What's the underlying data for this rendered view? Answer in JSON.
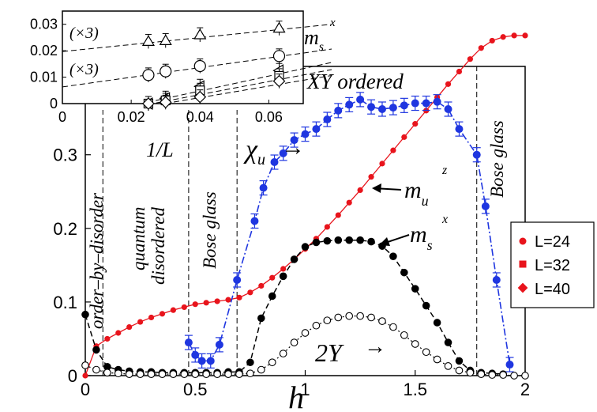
{
  "chart_data": [
    {
      "type": "scatter",
      "xlabel": "h",
      "ylabel": "",
      "xlim": [
        0,
        2
      ],
      "ylim": [
        0,
        0.42
      ],
      "xticks": [
        "0",
        "0.5",
        "1",
        "1.5",
        "2"
      ],
      "yticks": [
        "0",
        "0.1",
        "0.2",
        "0.3"
      ],
      "legend_position": "right",
      "legend": [
        "L=24",
        "L=32",
        "L=40"
      ],
      "phase_boundaries": [
        0.08,
        0.47,
        0.69,
        1.78
      ],
      "region_labels": [
        "order–by–disorder",
        "quantum",
        "disordered",
        "Bose glass",
        "XY ordered",
        "Bose glass"
      ],
      "annotations": {
        "chi_u": "χ",
        "chi_u_sub": "u",
        "m_uz": "m",
        "m_uz_sub": "u",
        "m_uz_sup": "z",
        "m_sx": "m",
        "m_sx_sub": "s",
        "m_sx_sup": "x",
        "upsilon": "2Υ",
        "arrow": "→"
      },
      "colors": {
        "m_uz": "#e8141c",
        "chi_u": "#1f36e0",
        "m_sx": "#000000",
        "upsilon": "#000000"
      },
      "series": [
        {
          "key": "m_uz",
          "x": [
            0.0,
            0.05,
            0.1,
            0.15,
            0.2,
            0.25,
            0.3,
            0.35,
            0.4,
            0.45,
            0.5,
            0.55,
            0.6,
            0.65,
            0.7,
            0.75,
            0.8,
            0.85,
            0.9,
            0.95,
            1.0,
            1.05,
            1.1,
            1.15,
            1.2,
            1.25,
            1.3,
            1.35,
            1.4,
            1.45,
            1.5,
            1.55,
            1.6,
            1.65,
            1.7,
            1.75,
            1.8,
            1.85,
            1.9,
            1.95,
            2.0
          ],
          "y": [
            0.0,
            0.04,
            0.05,
            0.058,
            0.066,
            0.073,
            0.079,
            0.084,
            0.089,
            0.093,
            0.097,
            0.099,
            0.101,
            0.103,
            0.106,
            0.113,
            0.122,
            0.133,
            0.145,
            0.158,
            0.172,
            0.186,
            0.202,
            0.218,
            0.235,
            0.252,
            0.27,
            0.288,
            0.306,
            0.324,
            0.342,
            0.36,
            0.378,
            0.396,
            0.413,
            0.43,
            0.445,
            0.455,
            0.46,
            0.462,
            0.462
          ]
        },
        {
          "key": "chi_u",
          "x": [
            0.47,
            0.5,
            0.53,
            0.57,
            0.61,
            0.69,
            0.77,
            0.81,
            0.86,
            0.9,
            0.95,
            1.0,
            1.05,
            1.1,
            1.15,
            1.2,
            1.25,
            1.3,
            1.35,
            1.4,
            1.45,
            1.5,
            1.55,
            1.6,
            1.65,
            1.7,
            1.78,
            1.82,
            1.87,
            1.93
          ],
          "y": [
            0.045,
            0.028,
            0.02,
            0.02,
            0.042,
            0.13,
            0.21,
            0.255,
            0.29,
            0.302,
            0.32,
            0.328,
            0.335,
            0.348,
            0.36,
            0.368,
            0.375,
            0.365,
            0.362,
            0.364,
            0.367,
            0.37,
            0.37,
            0.372,
            0.362,
            0.335,
            0.3,
            0.23,
            0.13,
            0.015
          ]
        },
        {
          "key": "m_sx",
          "x": [
            0.0,
            0.05,
            0.1,
            0.15,
            0.2,
            0.25,
            0.3,
            0.35,
            0.4,
            0.45,
            0.5,
            0.55,
            0.6,
            0.65,
            0.7,
            0.75,
            0.8,
            0.85,
            0.9,
            0.95,
            1.0,
            1.05,
            1.1,
            1.15,
            1.2,
            1.25,
            1.3,
            1.35,
            1.4,
            1.45,
            1.5,
            1.55,
            1.6,
            1.65,
            1.7,
            1.75,
            1.8,
            1.85,
            1.9
          ],
          "y": [
            0.083,
            0.035,
            0.012,
            0.008,
            0.006,
            0.005,
            0.005,
            0.004,
            0.004,
            0.004,
            0.004,
            0.004,
            0.004,
            0.005,
            0.005,
            0.018,
            0.078,
            0.108,
            0.135,
            0.158,
            0.175,
            0.181,
            0.183,
            0.184,
            0.184,
            0.184,
            0.182,
            0.176,
            0.162,
            0.14,
            0.118,
            0.095,
            0.072,
            0.045,
            0.02,
            0.007,
            0.004,
            0.003,
            0.002
          ]
        },
        {
          "key": "upsilon",
          "x": [
            0.0,
            0.05,
            0.1,
            0.15,
            0.2,
            0.25,
            0.3,
            0.35,
            0.4,
            0.45,
            0.5,
            0.55,
            0.6,
            0.65,
            0.7,
            0.75,
            0.8,
            0.85,
            0.9,
            0.95,
            1.0,
            1.05,
            1.1,
            1.15,
            1.2,
            1.25,
            1.3,
            1.35,
            1.4,
            1.45,
            1.5,
            1.55,
            1.6,
            1.65,
            1.7,
            1.75,
            1.8,
            1.85,
            1.9,
            1.95,
            2.0
          ],
          "y": [
            0.014,
            0.008,
            0.004,
            0.003,
            0.002,
            0.002,
            0.002,
            0.002,
            0.002,
            0.002,
            0.002,
            0.002,
            0.002,
            0.002,
            0.002,
            0.003,
            0.008,
            0.018,
            0.03,
            0.045,
            0.058,
            0.068,
            0.075,
            0.079,
            0.081,
            0.081,
            0.079,
            0.074,
            0.066,
            0.055,
            0.043,
            0.032,
            0.022,
            0.013,
            0.007,
            0.004,
            0.002,
            0.001,
            0.001,
            0.0,
            0.0
          ]
        }
      ]
    },
    {
      "type": "scatter",
      "xlabel": "1/L",
      "ylabel": "",
      "xlim": [
        0,
        0.07
      ],
      "ylim": [
        0,
        0.035
      ],
      "xticks": [
        "0",
        "0.02",
        "0.04",
        "0.06"
      ],
      "yticks": [
        "0",
        "0.01",
        "0.02",
        "0.03"
      ],
      "annotations": {
        "scale1": "(×3)",
        "scale2": "(×3)"
      },
      "series": [
        {
          "name": "(×3)",
          "marker": "triangle-up",
          "x": [
            0.025,
            0.03,
            0.04,
            0.063
          ],
          "y": [
            0.0235,
            0.0238,
            0.026,
            0.0285
          ],
          "fit": [
            0.0197,
            0.0289
          ]
        },
        {
          "name": "(×3)",
          "marker": "circle",
          "x": [
            0.025,
            0.03,
            0.04,
            0.063
          ],
          "y": [
            0.0108,
            0.0122,
            0.0142,
            0.018
          ],
          "fit": [
            0.0063,
            0.0191
          ]
        },
        {
          "marker": "triangle-left",
          "x": [
            0.025,
            0.03,
            0.04,
            0.063
          ],
          "y": [
            0.0,
            0.002,
            0.0065,
            0.0125
          ],
          "fit": [
            -0.0065,
            0.0132
          ]
        },
        {
          "marker": "square",
          "x": [
            0.025,
            0.03,
            0.04,
            0.063
          ],
          "y": [
            0.0,
            0.0012,
            0.005,
            0.0105
          ],
          "fit": [
            -0.0065,
            0.0108
          ]
        },
        {
          "marker": "diamond",
          "x": [
            0.025,
            0.03,
            0.04,
            0.063
          ],
          "y": [
            0.0,
            0.0005,
            0.0025,
            0.0085
          ],
          "fit": [
            -0.0065,
            0.0088
          ]
        }
      ]
    }
  ]
}
